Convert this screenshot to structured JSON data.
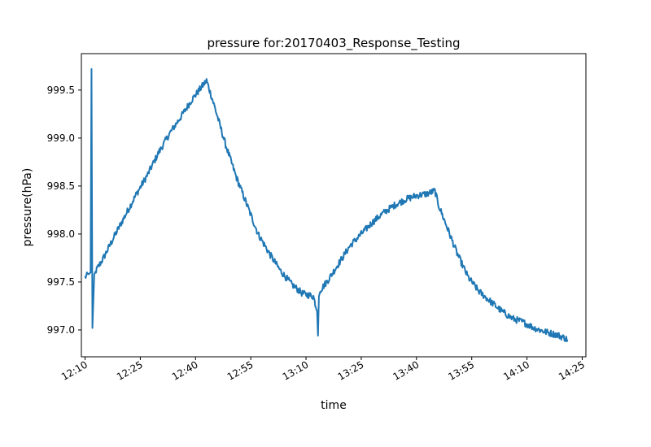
{
  "chart_data": {
    "type": "line",
    "title": "pressure for:20170403_Response_Testing",
    "xlabel": "time",
    "ylabel": "pressure(hPa)",
    "x_tick_labels": [
      "12:10",
      "12:25",
      "12:40",
      "12:55",
      "13:10",
      "13:25",
      "13:40",
      "13:55",
      "14:10",
      "14:25"
    ],
    "y_tick_labels": [
      "997.0",
      "997.5",
      "998.0",
      "998.5",
      "999.0",
      "999.5"
    ],
    "y_ticks": [
      997.0,
      997.5,
      998.0,
      998.5,
      999.0,
      999.5
    ],
    "xlim": [
      "12:09",
      "14:26"
    ],
    "ylim": [
      996.72,
      999.88
    ],
    "grid": false,
    "line_color": "#1f77b4",
    "series": [
      {
        "x": [
          "12:10",
          "12:11",
          "12:11:30",
          "12:11:45",
          "12:12",
          "12:12:15",
          "12:12:30",
          "12:13",
          "12:15",
          "12:18",
          "12:21",
          "12:24",
          "12:27",
          "12:30",
          "12:33",
          "12:36",
          "12:39",
          "12:41",
          "12:42",
          "12:43",
          "12:45",
          "12:48",
          "12:51",
          "12:54",
          "12:57",
          "13:00",
          "13:03",
          "13:06",
          "13:09",
          "13:12",
          "13:13",
          "13:13:15",
          "13:13:30",
          "13:14",
          "13:16",
          "13:19",
          "13:22",
          "13:25",
          "13:28",
          "13:31",
          "13:34",
          "13:37",
          "13:40",
          "13:43",
          "13:45",
          "13:46",
          "13:48",
          "13:51",
          "13:54",
          "13:57",
          "14:00",
          "14:03",
          "14:06",
          "14:09",
          "14:12",
          "14:15",
          "14:18",
          "14:20",
          "14:21"
        ],
        "values": [
          997.55,
          997.58,
          997.6,
          999.72,
          997.02,
          997.3,
          997.58,
          997.62,
          997.75,
          997.98,
          998.2,
          998.42,
          998.62,
          998.85,
          999.05,
          999.22,
          999.4,
          999.5,
          999.55,
          999.6,
          999.35,
          998.95,
          998.6,
          998.3,
          998.0,
          997.8,
          997.62,
          997.48,
          997.38,
          997.35,
          997.2,
          996.94,
          997.35,
          997.42,
          997.52,
          997.7,
          997.88,
          998.0,
          998.12,
          998.22,
          998.3,
          998.36,
          998.4,
          998.42,
          998.45,
          998.3,
          998.1,
          997.8,
          997.55,
          997.4,
          997.3,
          997.2,
          997.12,
          997.08,
          997.02,
          996.98,
          996.95,
          996.92,
          996.9
        ]
      }
    ]
  }
}
